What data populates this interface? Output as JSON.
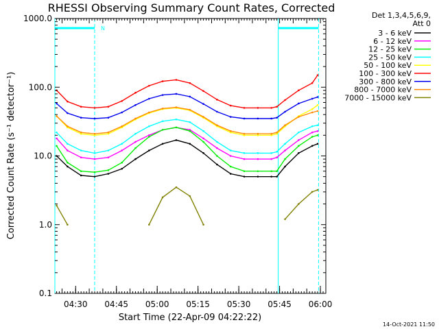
{
  "chart_data": {
    "type": "line",
    "title": "RHESSI Observing Summary Count Rates, Corrected",
    "xlabel": "Start Time (22-Apr-09 04:22:22)",
    "ylabel": "Corrected Count Rate (s⁻¹ detector⁻¹)",
    "y_scale": "log",
    "ylim": [
      0.1,
      1000
    ],
    "xlim": [
      "04:22:22",
      "06:02:00"
    ],
    "y_ticks": [
      "0.1",
      "1.0",
      "10.0",
      "100.0",
      "1000.0"
    ],
    "x_ticks": [
      "04:30",
      "04:45",
      "05:00",
      "05:15",
      "05:30",
      "05:45",
      "06:00"
    ],
    "legend_header": [
      "Det 1,3,4,5,6,9,",
      "Att 0"
    ],
    "legend_position": "outside-right",
    "grid": false,
    "flag_label": "N",
    "flag_intervals": [
      [
        "04:22:22",
        "04:37:00"
      ],
      [
        "05:44:30",
        "05:59:20"
      ]
    ],
    "time_points": [
      "04:23",
      "04:27",
      "04:32",
      "04:37",
      "04:42",
      "04:47",
      "04:52",
      "04:57",
      "05:02",
      "05:07",
      "05:12",
      "05:17",
      "05:22",
      "05:27",
      "05:32",
      "05:37",
      "05:42",
      "05:44",
      "05:47",
      "05:52",
      "05:57",
      "05:59"
    ],
    "series": [
      {
        "name": "3 - 6 keV",
        "color": "#000000",
        "values": [
          10.0,
          7.0,
          5.2,
          5.0,
          5.5,
          6.5,
          9.0,
          12.0,
          15.0,
          17.0,
          15.0,
          11.0,
          7.5,
          5.5,
          5.0,
          5.0,
          5.0,
          5.0,
          7.0,
          11.0,
          14.0,
          15.0
        ]
      },
      {
        "name": "6 - 12 keV",
        "color": "#ff00ff",
        "values": [
          18.0,
          12.0,
          9.5,
          9.0,
          9.5,
          12.0,
          16.0,
          20.0,
          24.0,
          26.0,
          24.0,
          18.0,
          13.0,
          10.0,
          9.0,
          9.0,
          9.0,
          9.5,
          12.0,
          17.0,
          22.0,
          23.0
        ]
      },
      {
        "name": "12 - 25 keV",
        "color": "#00ee00",
        "values": [
          14.0,
          8.0,
          6.0,
          5.8,
          6.2,
          8.0,
          13.0,
          19.0,
          24.0,
          26.0,
          23.0,
          16.0,
          10.0,
          7.0,
          6.0,
          6.0,
          6.0,
          6.0,
          9.0,
          14.0,
          19.0,
          20.0
        ]
      },
      {
        "name": "25 - 50 keV",
        "color": "#00ffff",
        "values": [
          22.0,
          15.0,
          12.0,
          11.0,
          12.0,
          15.0,
          21.0,
          27.0,
          32.0,
          34.0,
          31.0,
          23.0,
          16.0,
          12.0,
          11.0,
          11.0,
          11.0,
          11.5,
          15.0,
          22.0,
          27.0,
          28.0
        ]
      },
      {
        "name": "50 - 100 keV",
        "color": "#ffff00",
        "values": [
          38.0,
          26.0,
          21.0,
          20.0,
          21.0,
          26.0,
          34.0,
          42.0,
          48.0,
          50.0,
          46.0,
          36.0,
          27.0,
          22.0,
          20.0,
          20.0,
          20.0,
          21.0,
          27.0,
          38.0,
          48.0,
          55.0
        ]
      },
      {
        "name": "100 - 300 keV",
        "color": "#ff0000",
        "values": [
          90.0,
          62.0,
          52.0,
          50.0,
          52.0,
          63.0,
          83.0,
          105.0,
          122.0,
          128.0,
          115.0,
          88.0,
          66.0,
          54.0,
          50.0,
          50.0,
          50.0,
          52.0,
          65.0,
          90.0,
          115.0,
          150.0
        ]
      },
      {
        "name": "300 - 800 keV",
        "color": "#0000ee",
        "values": [
          58.0,
          42.0,
          36.0,
          35.0,
          36.0,
          43.0,
          55.0,
          68.0,
          77.0,
          80.0,
          73.0,
          57.0,
          44.0,
          37.0,
          35.0,
          35.0,
          35.0,
          36.0,
          44.0,
          58.0,
          68.0,
          72.0
        ]
      },
      {
        "name": "800 - 7000 keV",
        "color": "#ff8800",
        "values": [
          38.0,
          27.0,
          22.0,
          21.0,
          22.0,
          27.0,
          35.0,
          43.0,
          49.0,
          51.0,
          47.0,
          37.0,
          28.0,
          23.0,
          21.0,
          21.0,
          21.0,
          22.0,
          28.0,
          37.0,
          43.0,
          45.0
        ]
      },
      {
        "name": "7000 - 15000 keV",
        "color": "#808000",
        "values": [
          1.9,
          1.0,
          null,
          null,
          null,
          null,
          null,
          1.0,
          2.5,
          3.5,
          2.6,
          1.0,
          null,
          null,
          null,
          null,
          null,
          null,
          1.2,
          2.0,
          3.0,
          3.2
        ]
      }
    ]
  },
  "timestamp": "14-Oct-2021 11:50"
}
